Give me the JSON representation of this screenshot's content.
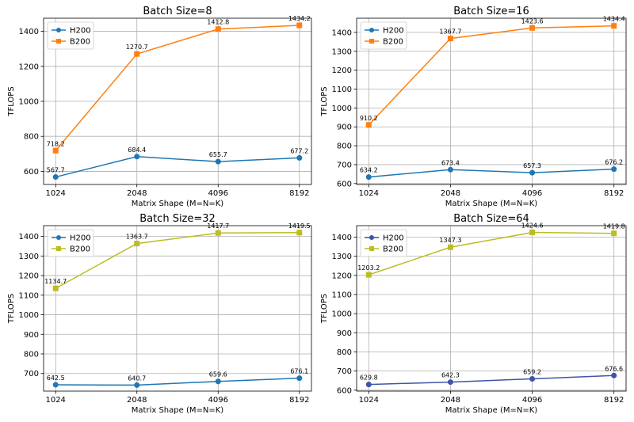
{
  "chart_data": [
    {
      "type": "line",
      "title": "Batch Size=8",
      "xlabel": "Matrix Shape (M=N=K)",
      "ylabel": "TFLOPS",
      "categories": [
        "1024",
        "2048",
        "4096",
        "8192"
      ],
      "ylim": [
        525,
        1475
      ],
      "yticks": [
        600,
        800,
        1000,
        1200,
        1400
      ],
      "grid": true,
      "legend": "top-left",
      "series": [
        {
          "name": "H200",
          "marker": "circle",
          "color": "#1f77b4",
          "values": [
            567.7,
            684.4,
            655.7,
            677.2
          ],
          "labels": [
            "567.7",
            "684.4",
            "655.7",
            "677.2"
          ]
        },
        {
          "name": "B200",
          "marker": "square",
          "color": "#ff7f0e",
          "values": [
            718.2,
            1270.7,
            1412.8,
            1434.2
          ],
          "labels": [
            "718.2",
            "1270.7",
            "1412.8",
            "1434.2"
          ]
        }
      ]
    },
    {
      "type": "line",
      "title": "Batch Size=16",
      "xlabel": "Matrix Shape (M=N=K)",
      "ylabel": "TFLOPS",
      "categories": [
        "1024",
        "2048",
        "4096",
        "8192"
      ],
      "ylim": [
        595,
        1475
      ],
      "yticks": [
        600,
        700,
        800,
        900,
        1000,
        1100,
        1200,
        1300,
        1400
      ],
      "grid": true,
      "legend": "top-left",
      "series": [
        {
          "name": "H200",
          "marker": "circle",
          "color": "#1f77b4",
          "values": [
            634.2,
            673.4,
            657.3,
            676.2
          ],
          "labels": [
            "634.2",
            "673.4",
            "657.3",
            "676.2"
          ]
        },
        {
          "name": "B200",
          "marker": "square",
          "color": "#ff7f0e",
          "values": [
            910.2,
            1367.7,
            1423.6,
            1434.4
          ],
          "labels": [
            "910.2",
            "1367.7",
            "1423.6",
            "1434.4"
          ]
        }
      ]
    },
    {
      "type": "line",
      "title": "Batch Size=32",
      "xlabel": "Matrix Shape (M=N=K)",
      "ylabel": "TFLOPS",
      "categories": [
        "1024",
        "2048",
        "4096",
        "8192"
      ],
      "ylim": [
        610,
        1455
      ],
      "yticks": [
        700,
        800,
        900,
        1000,
        1100,
        1200,
        1300,
        1400
      ],
      "grid": true,
      "legend": "top-left",
      "series": [
        {
          "name": "H200",
          "marker": "circle",
          "color": "#1f77b4",
          "values": [
            642.5,
            640.7,
            659.6,
            676.1
          ],
          "labels": [
            "642.5",
            "640.7",
            "659.6",
            "676.1"
          ]
        },
        {
          "name": "B200",
          "marker": "square",
          "color": "#bcbd22",
          "values": [
            1134.7,
            1363.7,
            1417.7,
            1419.5
          ],
          "labels": [
            "1134.7",
            "1363.7",
            "1417.7",
            "1419.5"
          ]
        }
      ]
    },
    {
      "type": "line",
      "title": "Batch Size=64",
      "xlabel": "Matrix Shape (M=N=K)",
      "ylabel": "TFLOPS",
      "categories": [
        "1024",
        "2048",
        "4096",
        "8192"
      ],
      "ylim": [
        595,
        1460
      ],
      "yticks": [
        600,
        700,
        800,
        900,
        1000,
        1100,
        1200,
        1300,
        1400
      ],
      "grid": true,
      "legend": "top-left",
      "series": [
        {
          "name": "H200",
          "marker": "circle",
          "color": "#3d55a8",
          "values": [
            629.8,
            642.3,
            659.2,
            676.6
          ],
          "labels": [
            "629.8",
            "642.3",
            "659.2",
            "676.6"
          ]
        },
        {
          "name": "B200",
          "marker": "square",
          "color": "#bcbd22",
          "values": [
            1203.2,
            1347.3,
            1424.6,
            1419.8
          ],
          "labels": [
            "1203.2",
            "1347.3",
            "1424.6",
            "1419.8"
          ]
        }
      ]
    }
  ]
}
